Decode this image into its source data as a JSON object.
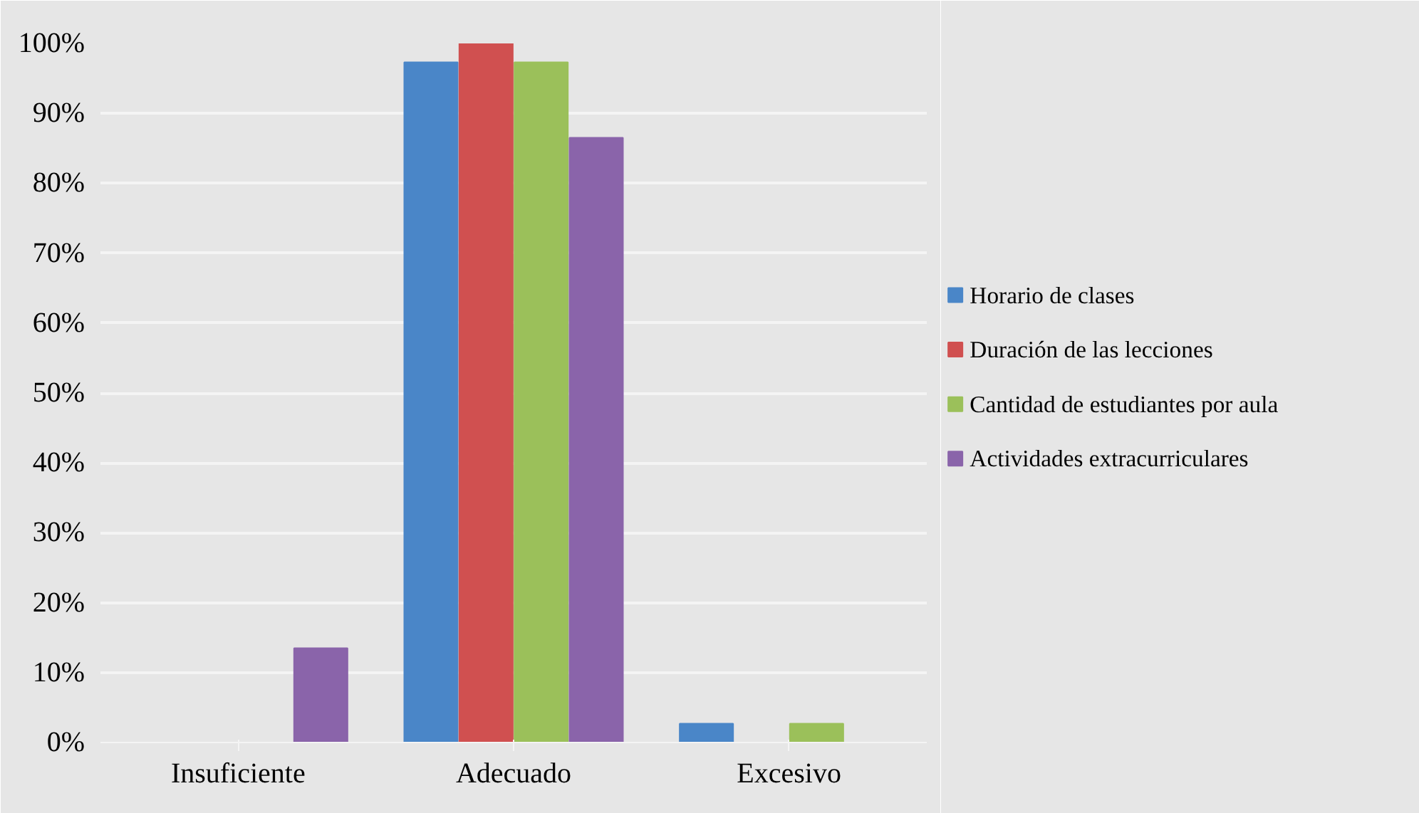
{
  "chart_data": {
    "type": "bar",
    "categories": [
      "Insuficiente",
      "Adecuado",
      "Excesivo"
    ],
    "series": [
      {
        "name": "Horario de clases",
        "color": "#4a86c8",
        "values": [
          0,
          97.3,
          2.7
        ]
      },
      {
        "name": "Duración de las lecciones",
        "color": "#d05050",
        "values": [
          0,
          100,
          0
        ]
      },
      {
        "name": "Cantidad de estudiantes por aula",
        "color": "#9bc05a",
        "values": [
          0,
          97.3,
          2.7
        ]
      },
      {
        "name": "Actividades extracurriculares",
        "color": "#8a64aa",
        "values": [
          13.5,
          86.5,
          0
        ]
      }
    ],
    "ylim": [
      0,
      100
    ],
    "yticks": [
      {
        "value": 0,
        "label": "0%"
      },
      {
        "value": 10,
        "label": "10%"
      },
      {
        "value": 20,
        "label": "20%"
      },
      {
        "value": 30,
        "label": "30%"
      },
      {
        "value": 40,
        "label": "40%"
      },
      {
        "value": 50,
        "label": "50%"
      },
      {
        "value": 60,
        "label": "60%"
      },
      {
        "value": 70,
        "label": "70%"
      },
      {
        "value": 80,
        "label": "80%"
      },
      {
        "value": 90,
        "label": "90%"
      },
      {
        "value": 100,
        "label": "100%"
      }
    ],
    "grid": "y",
    "legend": "right"
  }
}
